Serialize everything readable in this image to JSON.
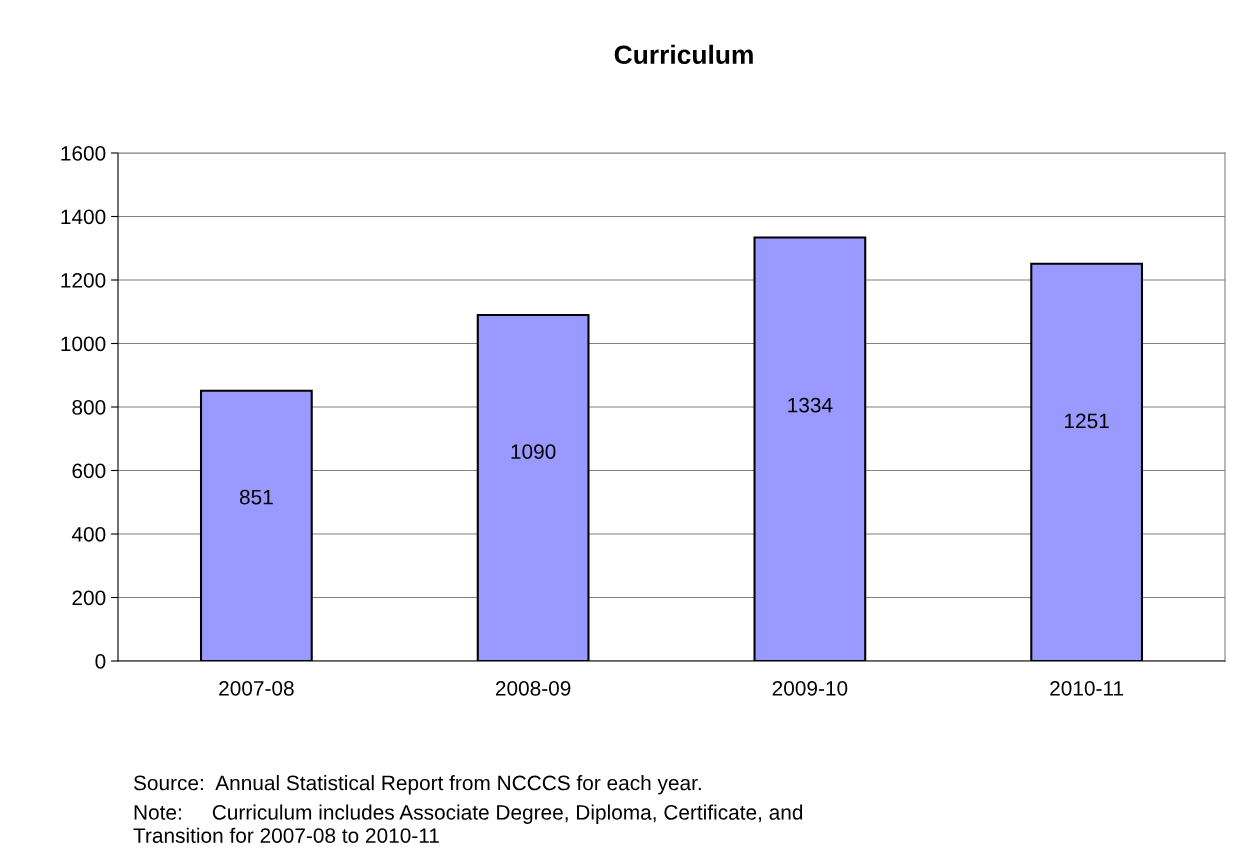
{
  "chart_data": {
    "type": "bar",
    "title": "Curriculum",
    "categories": [
      "2007-08",
      "2008-09",
      "2009-10",
      "2010-11"
    ],
    "values": [
      851,
      1090,
      1334,
      1251
    ],
    "color": "#9999ff",
    "ylim": [
      0,
      1600
    ],
    "yticks": [
      0,
      200,
      400,
      600,
      800,
      1000,
      1200,
      1400,
      1600
    ],
    "grid": "y",
    "data_labels": true,
    "annotations": [
      "Source:  Annual Statistical Report from NCCCS for each year.",
      "Note:     Curriculum includes Associate Degree, Diploma, Certificate, and\nTransition for 2007-08 to 2010-11"
    ]
  }
}
